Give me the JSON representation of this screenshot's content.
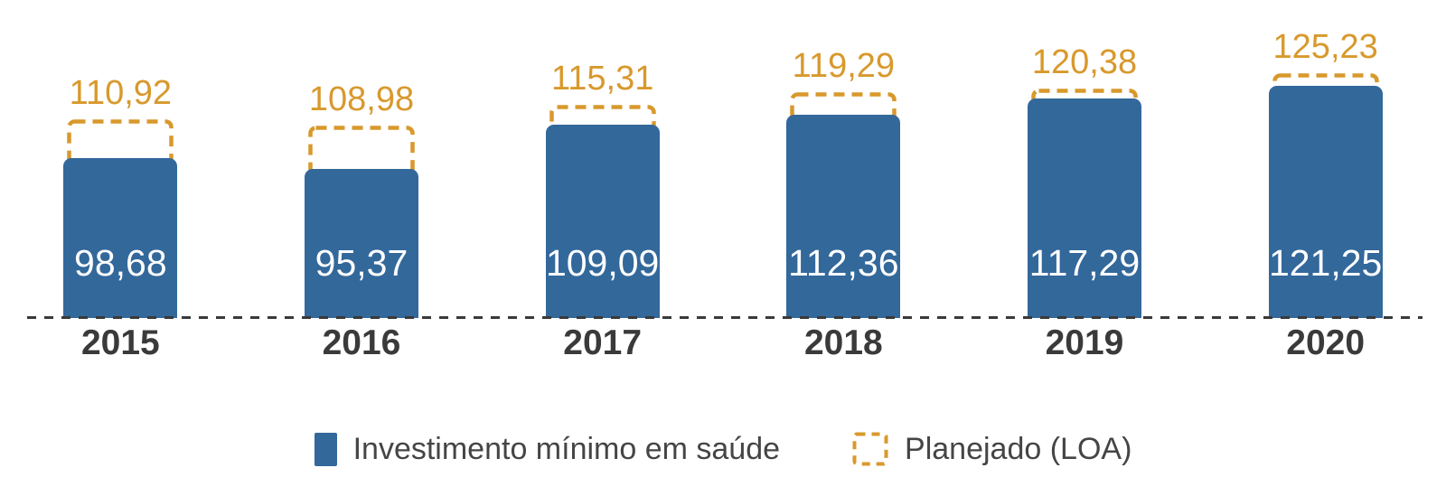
{
  "chart_data": {
    "type": "bar",
    "categories": [
      "2015",
      "2016",
      "2017",
      "2018",
      "2019",
      "2020"
    ],
    "series": [
      {
        "name": "Investimento mínimo em saúde",
        "style": "solid-bar",
        "values": [
          98.68,
          95.37,
          109.09,
          112.36,
          117.29,
          121.25
        ]
      },
      {
        "name": "Planejado (LOA)",
        "style": "dashed-outline",
        "values": [
          110.92,
          108.98,
          115.31,
          119.29,
          120.38,
          125.23
        ]
      }
    ],
    "value_labels": {
      "actual": [
        "98,68",
        "95,37",
        "109,09",
        "112,36",
        "117,29",
        "121,25"
      ],
      "planned": [
        "110,92",
        "108,98",
        "115,31",
        "119,29",
        "120,38",
        "125,23"
      ]
    },
    "title": "",
    "xlabel": "",
    "ylabel": "",
    "axis_min_estimate": 49,
    "grid": false,
    "baseline_style": "dashed",
    "legend_position": "bottom",
    "legend": [
      {
        "label": "Investimento mínimo em saúde",
        "swatch": "solid-blue-rect"
      },
      {
        "label": "Planejado (LOA)",
        "swatch": "dashed-orange-rect"
      }
    ]
  },
  "colors": {
    "bar_blue": "#33689B",
    "planned_orange": "#D8992C",
    "year_label": "#3A3A3A",
    "bar_value_text": "#FFFFFF",
    "legend_text": "#454545",
    "baseline": "#3A3A3A",
    "background": "#FFFFFF"
  }
}
